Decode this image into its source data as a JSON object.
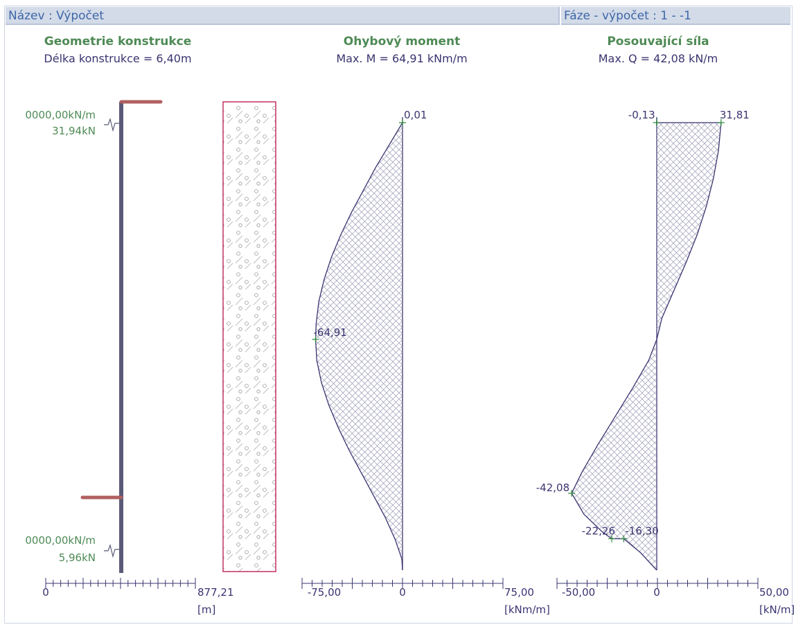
{
  "header": {
    "name_label": "Název : Výpočet",
    "phase_label": "Fáze - výpočet : 1 - -1"
  },
  "panels": {
    "geometry": {
      "title": "Geometrie konstrukce",
      "subtitle": "Délka konstrukce = 6,40m",
      "top_spring": "0000,00kN/m",
      "top_force": "31,94kN",
      "bottom_spring": "0000,00kN/m",
      "bottom_force": "5,96kN",
      "axis_min": "0",
      "axis_max": "877,21",
      "axis_unit": "[m]"
    },
    "moment": {
      "title": "Ohybový moment",
      "subtitle": "Max. M = 64,91 kNm/m",
      "axis_min": "-75,00",
      "axis_zero": "0",
      "axis_max": "75,00",
      "axis_unit": "[kNm/m]"
    },
    "shear": {
      "title": "Posouvající síla",
      "subtitle": "Max. Q = 42,08 kN/m",
      "axis_min": "-50,00",
      "axis_zero": "0",
      "axis_max": "50,00",
      "axis_unit": "[kN/m]"
    }
  },
  "colors": {
    "header_text": "#3d66a8",
    "title_green": "#4e8a55",
    "subtitle_navy": "#3a3470",
    "wall": "#5a5a78",
    "anchor": "#b06060",
    "soil_border": "#c03060",
    "diagram_line": "#3a3470",
    "hatch": "#8a8aa8",
    "marker": "#2d8a3a"
  },
  "chart_data": [
    {
      "type": "area",
      "name": "moment",
      "xlim": [
        -75,
        75
      ],
      "points": [
        {
          "depth": 0.0,
          "value": 0.01
        },
        {
          "depth": 0.32,
          "value": -10
        },
        {
          "depth": 0.64,
          "value": -20
        },
        {
          "depth": 0.96,
          "value": -29
        },
        {
          "depth": 1.28,
          "value": -38
        },
        {
          "depth": 1.6,
          "value": -46
        },
        {
          "depth": 1.92,
          "value": -53
        },
        {
          "depth": 2.24,
          "value": -58.5
        },
        {
          "depth": 2.56,
          "value": -62.5
        },
        {
          "depth": 2.88,
          "value": -64.5
        },
        {
          "depth": 3.1,
          "value": -64.91
        },
        {
          "depth": 3.4,
          "value": -64
        },
        {
          "depth": 3.72,
          "value": -60.5
        },
        {
          "depth": 4.04,
          "value": -55
        },
        {
          "depth": 4.36,
          "value": -48
        },
        {
          "depth": 4.68,
          "value": -40
        },
        {
          "depth": 5.0,
          "value": -31
        },
        {
          "depth": 5.32,
          "value": -22
        },
        {
          "depth": 5.64,
          "value": -13
        },
        {
          "depth": 5.96,
          "value": -5.5
        },
        {
          "depth": 6.24,
          "value": -0.5
        },
        {
          "depth": 6.4,
          "value": 0
        }
      ],
      "labels": [
        {
          "text": "0,01",
          "depth": 0.0,
          "value": 0.01
        },
        {
          "text": "-64,91",
          "depth": 3.1,
          "value": -64.91
        }
      ]
    },
    {
      "type": "area",
      "name": "shear",
      "xlim": [
        -50,
        50
      ],
      "points": [
        {
          "depth": 0.0,
          "value": 31.81
        },
        {
          "depth": 0.4,
          "value": 30.5
        },
        {
          "depth": 0.8,
          "value": 28
        },
        {
          "depth": 1.2,
          "value": 24.5
        },
        {
          "depth": 1.6,
          "value": 20
        },
        {
          "depth": 2.0,
          "value": 14.5
        },
        {
          "depth": 2.4,
          "value": 8.5
        },
        {
          "depth": 2.8,
          "value": 2.5
        },
        {
          "depth": 3.1,
          "value": 0
        },
        {
          "depth": 3.4,
          "value": -4
        },
        {
          "depth": 3.8,
          "value": -12
        },
        {
          "depth": 4.2,
          "value": -20.5
        },
        {
          "depth": 4.6,
          "value": -29
        },
        {
          "depth": 5.0,
          "value": -37
        },
        {
          "depth": 5.3,
          "value": -42.08
        },
        {
          "depth": 5.6,
          "value": -36
        },
        {
          "depth": 5.85,
          "value": -27
        },
        {
          "depth": 5.95,
          "value": -22.26
        },
        {
          "depth": 5.95,
          "value": -16.3
        },
        {
          "depth": 6.15,
          "value": -8
        },
        {
          "depth": 6.4,
          "value": 0
        }
      ],
      "top_left_value": -0.13,
      "labels": [
        {
          "text": "-0,13",
          "depth": 0.0,
          "value": -0.13
        },
        {
          "text": "31,81",
          "depth": 0.0,
          "value": 31.81
        },
        {
          "text": "-42,08",
          "depth": 5.3,
          "value": -42.08
        },
        {
          "text": "-22,26",
          "depth": 5.95,
          "value": -22.26
        },
        {
          "text": "-16,30",
          "depth": 5.95,
          "value": -16.3
        }
      ]
    }
  ]
}
